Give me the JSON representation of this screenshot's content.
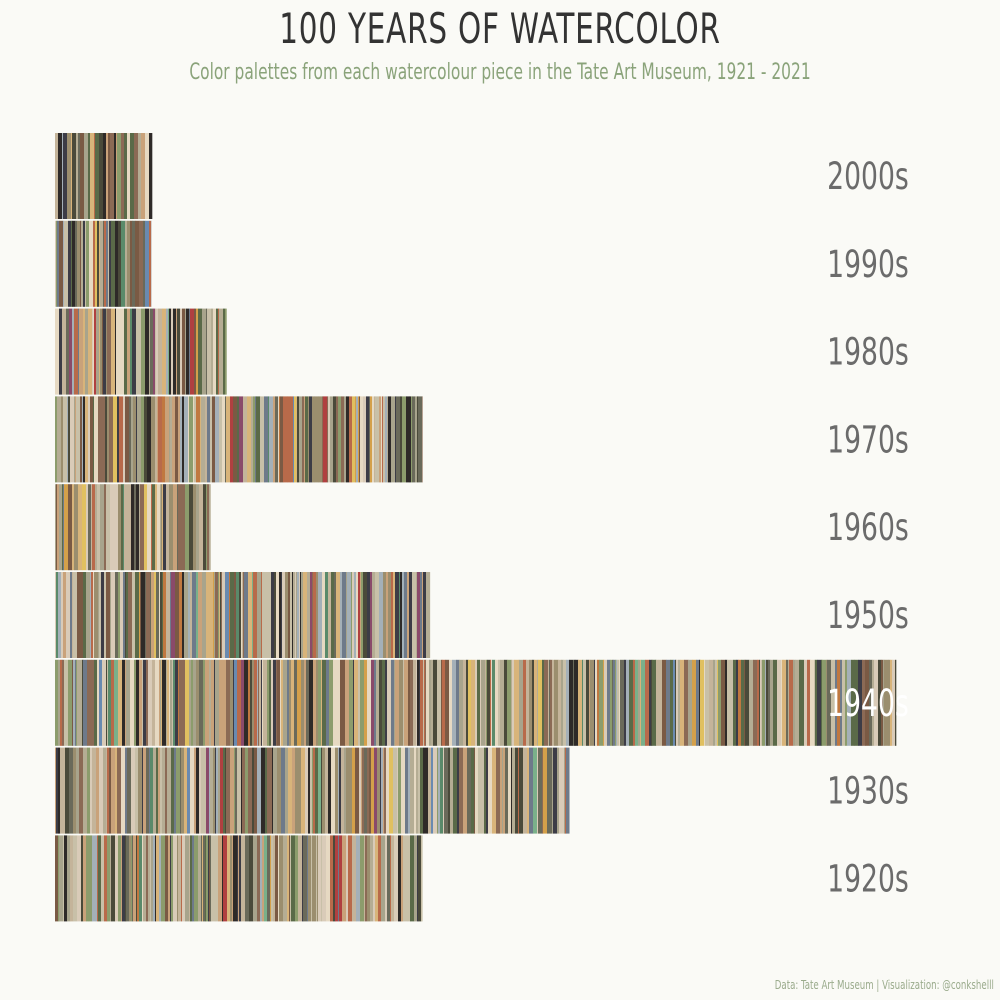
{
  "header": {
    "title": "100 YEARS OF WATERCOLOR",
    "subtitle": "Color palettes from each watercolour piece in the Tate Art Museum, 1921 - 2021"
  },
  "footer": {
    "caption": "Data: Tate Art Museum | Visualization: @conkshelll"
  },
  "colors": {
    "background": "#fafaf6",
    "title": "#333333",
    "subtitle": "#8aa37a",
    "label": "#6b6b6b",
    "label_on_bar": "#ffffff",
    "palette": [
      "#8b6a55",
      "#d9cbb8",
      "#4a4a3a",
      "#a8a48c",
      "#6e7a8a",
      "#c9a27a",
      "#3c3c46",
      "#b5ad94",
      "#7a5a44",
      "#e6d9c2",
      "#5a6a48",
      "#9b8e6e",
      "#c4b49a",
      "#2e2a28",
      "#a4b0b8",
      "#d8b47a",
      "#8c9c6c",
      "#b86a4a",
      "#6a6a5a",
      "#c8c0a8"
    ],
    "accent_palette": [
      "#d4a04a",
      "#5a8a6a",
      "#b04040",
      "#6a8ab0",
      "#e0c060",
      "#8a4a6a",
      "#7ab08a",
      "#c07840"
    ]
  },
  "chart_data": {
    "type": "bar",
    "orientation": "horizontal",
    "description_of_marks": "each bar is composed of thin vertical color stripes, one per palette color",
    "categories": [
      "2000s",
      "1990s",
      "1980s",
      "1970s",
      "1960s",
      "1950s",
      "1940s",
      "1930s",
      "1920s"
    ],
    "values": [
      103,
      102,
      182,
      390,
      165,
      398,
      893,
      546,
      390
    ],
    "xlabel": "",
    "ylabel": "",
    "xlim": [
      0,
      945
    ],
    "grid": false,
    "legend": "none"
  }
}
